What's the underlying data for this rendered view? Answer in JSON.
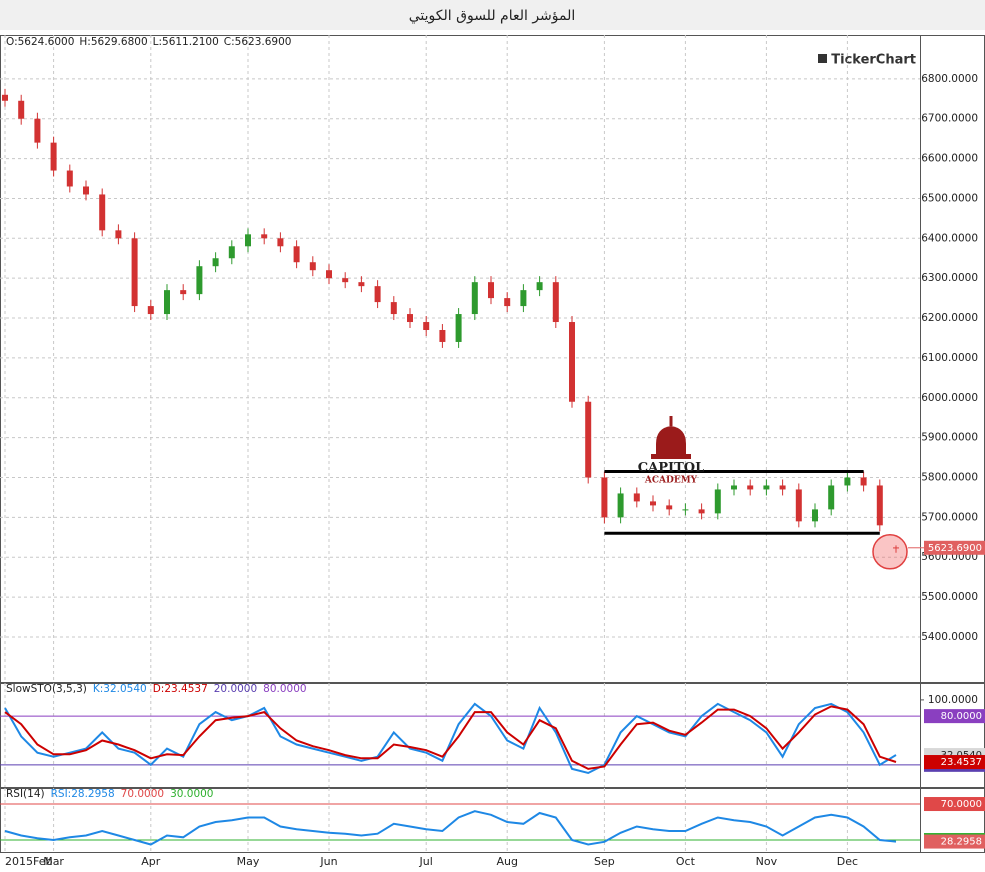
{
  "title": "المؤشر العام للسوق الكويتي",
  "brand": "TickerChart",
  "chart_data": [
    {
      "type": "candlestick",
      "header": [
        "O:5624.6000",
        "H:5629.6800",
        "L:5611.2100",
        "C:5623.6900"
      ],
      "categories": [
        "2015Feb",
        null,
        null,
        "Mar",
        null,
        null,
        null,
        null,
        null,
        "Apr",
        null,
        null,
        null,
        null,
        null,
        "May",
        null,
        null,
        null,
        null,
        "Jun",
        null,
        null,
        null,
        null,
        null,
        "Jul",
        null,
        null,
        null,
        null,
        "Aug",
        null,
        null,
        null,
        null,
        null,
        "Sep",
        null,
        null,
        null,
        null,
        "Oct",
        null,
        null,
        null,
        null,
        "Nov",
        null,
        null,
        null,
        null,
        "Dec",
        null,
        null,
        null
      ],
      "open": [
        6760,
        6745,
        6700,
        6640,
        6570,
        6530,
        6510,
        6420,
        6400,
        6230,
        6210,
        6270,
        6260,
        6330,
        6350,
        6380,
        6410,
        6400,
        6380,
        6340,
        6320,
        6300,
        6290,
        6280,
        6240,
        6210,
        6190,
        6170,
        6140,
        6210,
        6290,
        6250,
        6230,
        6270,
        6290,
        6190,
        5990,
        5800,
        5700,
        5760,
        5740,
        5730,
        5720,
        5720,
        5710,
        5770,
        5780,
        5770,
        5780,
        5770,
        5690,
        5720,
        5780,
        5800,
        5780,
        5624.6
      ],
      "high": [
        6775,
        6760,
        6715,
        6655,
        6585,
        6545,
        6525,
        6435,
        6415,
        6245,
        6285,
        6285,
        6345,
        6365,
        6395,
        6425,
        6425,
        6415,
        6395,
        6355,
        6335,
        6315,
        6305,
        6295,
        6255,
        6225,
        6205,
        6185,
        6225,
        6305,
        6305,
        6265,
        6285,
        6305,
        6305,
        6205,
        6005,
        5815,
        5775,
        5775,
        5755,
        5745,
        5735,
        5735,
        5785,
        5795,
        5795,
        5795,
        5795,
        5785,
        5735,
        5795,
        5815,
        5815,
        5795,
        5629.68
      ],
      "low": [
        6730,
        6685,
        6625,
        6555,
        6515,
        6495,
        6405,
        6385,
        6215,
        6195,
        6195,
        6245,
        6245,
        6315,
        6335,
        6365,
        6385,
        6365,
        6325,
        6305,
        6285,
        6275,
        6265,
        6225,
        6195,
        6175,
        6155,
        6125,
        6125,
        6195,
        6235,
        6215,
        6215,
        6255,
        6175,
        5975,
        5785,
        5685,
        5685,
        5725,
        5715,
        5705,
        5705,
        5695,
        5695,
        5755,
        5755,
        5755,
        5755,
        5675,
        5675,
        5705,
        5765,
        5765,
        5665,
        5611.21
      ],
      "close": [
        6745,
        6700,
        6640,
        6570,
        6530,
        6510,
        6420,
        6400,
        6230,
        6210,
        6270,
        6260,
        6330,
        6350,
        6380,
        6410,
        6400,
        6380,
        6340,
        6320,
        6300,
        6290,
        6280,
        6240,
        6210,
        6190,
        6170,
        6140,
        6210,
        6290,
        6250,
        6230,
        6270,
        6290,
        6190,
        5990,
        5800,
        5700,
        5760,
        5740,
        5730,
        5720,
        5720,
        5710,
        5770,
        5780,
        5770,
        5780,
        5770,
        5690,
        5720,
        5780,
        5800,
        5780,
        5680,
        5623.69
      ],
      "up_color": "#2e9a2e",
      "down_color": "#d23232",
      "last_label": "5623.6900",
      "ylim": [
        5287,
        6910
      ],
      "yticks": [
        {
          "value": 5400,
          "label": "5400.0000"
        },
        {
          "value": 5500,
          "label": "5500.0000"
        },
        {
          "value": 5600,
          "label": "5600.0000"
        },
        {
          "value": 5700,
          "label": "5700.0000"
        },
        {
          "value": 5800,
          "label": "5800.0000"
        },
        {
          "value": 5900,
          "label": "5900.0000"
        },
        {
          "value": 6000,
          "label": "6000.0000"
        },
        {
          "value": 6100,
          "label": "6100.0000"
        },
        {
          "value": 6200,
          "label": "6200.0000"
        },
        {
          "value": 6300,
          "label": "6300.0000"
        },
        {
          "value": 6400,
          "label": "6400.0000"
        },
        {
          "value": 6500,
          "label": "6500.0000"
        },
        {
          "value": 6600,
          "label": "6600.0000"
        },
        {
          "value": 6700,
          "label": "6700.0000"
        },
        {
          "value": 6800,
          "label": "6800.0000"
        }
      ],
      "grid": true,
      "trend_lines": [
        {
          "value": 5815,
          "from": 37,
          "to": 53
        },
        {
          "value": 5660,
          "from": 37,
          "to": 54
        }
      ],
      "logo": [
        "CAPITOL",
        "ACADEMY"
      ]
    },
    {
      "type": "line",
      "name": "SlowSTO(3,5,3)",
      "series": [
        {
          "name": "K:32.0540",
          "color": "#1e88e5",
          "last_label": "32.0540",
          "values": [
            90,
            55,
            35,
            30,
            35,
            40,
            60,
            40,
            35,
            20,
            40,
            30,
            70,
            85,
            75,
            80,
            90,
            55,
            45,
            40,
            35,
            30,
            25,
            30,
            60,
            40,
            35,
            25,
            70,
            95,
            80,
            50,
            40,
            90,
            60,
            15,
            10,
            20,
            60,
            80,
            70,
            60,
            55,
            80,
            95,
            85,
            75,
            60,
            30,
            70,
            90,
            95,
            85,
            60,
            20,
            32.054
          ]
        },
        {
          "name": "D:23.4537",
          "color": "#cc0000",
          "last_label": "23.4537",
          "values": [
            85,
            70,
            45,
            33,
            33,
            38,
            50,
            45,
            38,
            28,
            33,
            32,
            55,
            75,
            78,
            80,
            85,
            65,
            50,
            43,
            38,
            32,
            28,
            28,
            45,
            42,
            38,
            30,
            55,
            85,
            85,
            60,
            45,
            75,
            65,
            25,
            15,
            18,
            45,
            70,
            72,
            62,
            57,
            72,
            88,
            88,
            80,
            65,
            40,
            60,
            82,
            92,
            88,
            70,
            30,
            23.4537
          ]
        }
      ],
      "levels": [
        {
          "value": 20,
          "label": "20.0000",
          "color": "#5a3fb0"
        },
        {
          "value": 80,
          "label": "80.0000",
          "color": "#8a3fc0"
        }
      ],
      "ylim": [
        -7.3,
        120.8
      ],
      "yticks": [
        {
          "value": 100,
          "label": "100.0000"
        }
      ]
    },
    {
      "type": "line",
      "name": "RSI(14)",
      "series": [
        {
          "name": "RSI:28.2958",
          "color": "#1e88e5",
          "last_label": "28.2958",
          "values": [
            40,
            35,
            32,
            30,
            33,
            35,
            40,
            35,
            30,
            25,
            35,
            33,
            45,
            50,
            52,
            55,
            55,
            45,
            42,
            40,
            38,
            37,
            35,
            37,
            48,
            45,
            42,
            40,
            55,
            62,
            58,
            50,
            48,
            60,
            55,
            30,
            25,
            28,
            38,
            45,
            42,
            40,
            40,
            48,
            55,
            52,
            50,
            45,
            35,
            45,
            55,
            58,
            55,
            45,
            30,
            28.2958
          ]
        }
      ],
      "levels": [
        {
          "value": 70,
          "label": "70.0000",
          "color": "#e04848"
        },
        {
          "value": 30,
          "label": "30.0000",
          "color": "#2fb02f"
        }
      ],
      "ylim": [
        16.7,
        87.8
      ],
      "yticks": []
    }
  ]
}
